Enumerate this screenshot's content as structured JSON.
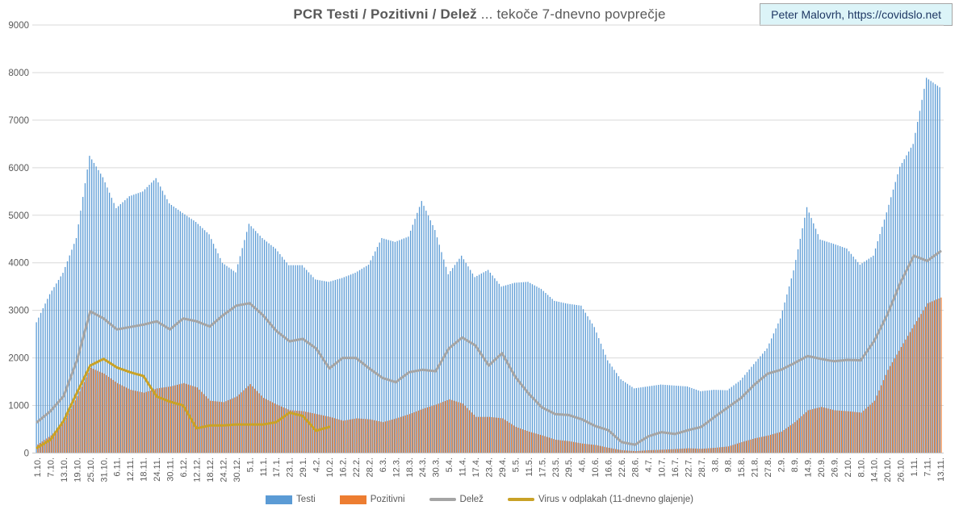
{
  "title": {
    "bold": "PCR Testi / Pozitivni / Delež",
    "rest": " ... tekoče 7-dnevno povprečje"
  },
  "badge": {
    "text": "Peter Malovrh, https://covidslo.net"
  },
  "colors": {
    "testi": "#5B9BD5",
    "pozitivni": "#ED7D31",
    "delez": "#A5A5A5",
    "virus": "#C9A227",
    "gridline": "#D9D9D9",
    "axis_text": "#595959",
    "badge_bg": "#DCF4F8",
    "badge_text": "#1F3864"
  },
  "legend": [
    {
      "label": "Testi",
      "type": "bar",
      "color": "#5B9BD5"
    },
    {
      "label": "Pozitivni",
      "type": "bar",
      "color": "#ED7D31"
    },
    {
      "label": "Delež",
      "type": "line",
      "color": "#A5A5A5"
    },
    {
      "label": "Virus v odplakah (11-dnevno glajenje)",
      "type": "line",
      "color": "#C9A227"
    }
  ],
  "chart_data": {
    "type": "bar",
    "combo": "daily clustered bars (Testi, Pozitivni) + lines (Delež, Virus v odplakah); all series 7-day moving averages, values sampled at the 6-day tick labels",
    "title": "PCR Testi / Pozitivni / Delež ... tekoče 7-dnevno povprečje",
    "xlabel": "",
    "ylabel": "",
    "ylim": [
      0,
      9000
    ],
    "y_ticks": [
      0,
      1000,
      2000,
      3000,
      4000,
      5000,
      6000,
      7000,
      8000,
      9000
    ],
    "grid": true,
    "legend_position": "bottom",
    "x_tick_interval_days": 6,
    "x_tick_labels": [
      "1.10.",
      "7.10.",
      "13.10.",
      "19.10.",
      "25.10.",
      "31.10.",
      "6.11.",
      "12.11.",
      "18.11.",
      "24.11.",
      "30.11.",
      "6.12.",
      "12.12.",
      "18.12.",
      "24.12.",
      "30.12.",
      "5.1.",
      "11.1.",
      "17.1.",
      "23.1.",
      "29.1.",
      "4.2.",
      "10.2.",
      "16.2.",
      "22.2.",
      "28.2.",
      "6.3.",
      "12.3.",
      "18.3.",
      "24.3.",
      "30.3.",
      "5.4.",
      "11.4.",
      "17.4.",
      "23.4.",
      "29.4.",
      "5.5.",
      "11.5.",
      "17.5.",
      "23.5.",
      "29.5.",
      "4.6.",
      "10.6.",
      "16.6.",
      "22.6.",
      "28.6.",
      "4.7.",
      "10.7.",
      "16.7.",
      "22.7.",
      "28.7.",
      "3.8.",
      "9.8.",
      "15.8.",
      "21.8.",
      "27.8.",
      "2.9.",
      "8.9.",
      "14.9.",
      "20.9.",
      "26.9.",
      "2.10.",
      "8.10.",
      "14.10.",
      "20.10.",
      "26.10.",
      "1.11.",
      "7.11.",
      "13.11."
    ],
    "series": [
      {
        "name": "Testi",
        "type": "bar",
        "color": "#5B9BD5",
        "values": [
          2750,
          3340,
          3790,
          4520,
          6250,
          5800,
          5150,
          5400,
          5500,
          5780,
          5250,
          5050,
          4860,
          4600,
          4000,
          3800,
          4820,
          4520,
          4300,
          3950,
          3950,
          3650,
          3600,
          3680,
          3790,
          3960,
          4520,
          4440,
          4550,
          5300,
          4690,
          3760,
          4150,
          3700,
          3850,
          3500,
          3580,
          3600,
          3450,
          3200,
          3140,
          3100,
          2650,
          1950,
          1550,
          1360,
          1400,
          1440,
          1420,
          1400,
          1300,
          1330,
          1320,
          1530,
          1870,
          2200,
          2830,
          3840,
          5170,
          4490,
          4400,
          4300,
          3960,
          4150,
          5060,
          6020,
          6500,
          7890,
          7690
        ]
      },
      {
        "name": "Pozitivni",
        "type": "bar",
        "color": "#ED7D31",
        "values": [
          180,
          370,
          650,
          1200,
          1790,
          1670,
          1470,
          1330,
          1270,
          1360,
          1400,
          1470,
          1380,
          1100,
          1070,
          1190,
          1450,
          1160,
          1020,
          900,
          880,
          820,
          760,
          680,
          730,
          710,
          650,
          730,
          820,
          930,
          1020,
          1130,
          1040,
          760,
          760,
          730,
          550,
          450,
          370,
          280,
          250,
          200,
          170,
          110,
          60,
          40,
          60,
          70,
          85,
          100,
          90,
          110,
          140,
          230,
          310,
          370,
          450,
          650,
          900,
          970,
          900,
          880,
          850,
          1100,
          1750,
          2230,
          2700,
          3150,
          3270
        ]
      },
      {
        "name": "Delež",
        "type": "line",
        "color": "#A5A5A5",
        "values": [
          650,
          880,
          1200,
          1950,
          2980,
          2830,
          2600,
          2650,
          2700,
          2770,
          2600,
          2830,
          2770,
          2660,
          2900,
          3100,
          3150,
          2900,
          2570,
          2350,
          2400,
          2200,
          1780,
          2000,
          2000,
          1780,
          1580,
          1490,
          1700,
          1750,
          1720,
          2200,
          2430,
          2260,
          1840,
          2100,
          1600,
          1250,
          960,
          820,
          800,
          710,
          570,
          480,
          230,
          175,
          350,
          440,
          400,
          480,
          550,
          760,
          960,
          1160,
          1440,
          1670,
          1750,
          1890,
          2040,
          1980,
          1930,
          1960,
          1950,
          2350,
          2910,
          3590,
          4150,
          4040,
          4240
        ]
      },
      {
        "name": "Virus v odplakah (11-dnevno glajenje)",
        "type": "line",
        "color": "#C9A227",
        "values": [
          110,
          280,
          680,
          1270,
          1840,
          1980,
          1800,
          1700,
          1620,
          1190,
          1080,
          1000,
          520,
          580,
          580,
          600,
          600,
          600,
          650,
          850,
          780,
          470,
          550,
          null,
          null,
          null,
          null,
          null,
          null,
          null,
          null,
          null,
          null,
          null,
          null,
          null,
          null,
          null,
          null,
          null,
          null,
          null,
          null,
          null,
          null,
          null,
          null,
          null,
          null,
          null,
          null,
          null,
          null,
          null,
          null,
          null,
          null,
          null,
          null,
          null,
          null,
          null,
          null,
          null,
          null,
          null,
          null,
          null,
          null
        ]
      }
    ]
  }
}
